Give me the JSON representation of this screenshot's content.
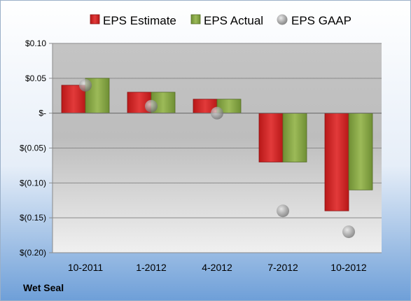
{
  "chart_data": {
    "type": "bar",
    "categories": [
      "10-2011",
      "1-2012",
      "4-2012",
      "7-2012",
      "10-2012"
    ],
    "series": [
      {
        "name": "EPS Estimate",
        "kind": "bar",
        "color": "#d42a2a",
        "values": [
          0.04,
          0.03,
          0.02,
          -0.07,
          -0.14
        ]
      },
      {
        "name": "EPS Actual",
        "kind": "bar",
        "color": "#8dab4a",
        "values": [
          0.05,
          0.03,
          0.02,
          -0.07,
          -0.11
        ]
      },
      {
        "name": "EPS GAAP",
        "kind": "point",
        "color": "#9a9a9a",
        "values": [
          0.04,
          0.01,
          0.0,
          -0.14,
          -0.17
        ]
      }
    ],
    "y_ticks": [
      {
        "value": 0.1,
        "label": "$0.10"
      },
      {
        "value": 0.05,
        "label": "$0.05"
      },
      {
        "value": 0.0,
        "label": "$-"
      },
      {
        "value": -0.05,
        "label": "$(0.05)"
      },
      {
        "value": -0.1,
        "label": "$(0.10)"
      },
      {
        "value": -0.15,
        "label": "$(0.15)"
      },
      {
        "value": -0.2,
        "label": "$(0.20)"
      }
    ],
    "ylim": [
      -0.2,
      0.1
    ],
    "grid": true,
    "legend_position": "top"
  },
  "footer": {
    "company": "Wet Seal"
  }
}
